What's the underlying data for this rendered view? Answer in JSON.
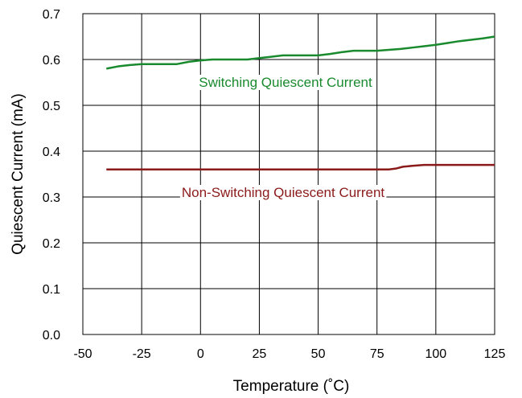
{
  "chart_data": {
    "type": "line",
    "title": "",
    "xlabel": "Temperature (˚C)",
    "ylabel": "Quiescent Current (mA)",
    "xlim": [
      -50,
      125
    ],
    "ylim": [
      0.0,
      0.7
    ],
    "x_ticks": [
      "-50",
      "-25",
      "0",
      "25",
      "50",
      "75",
      "100",
      "125"
    ],
    "y_ticks": [
      "0.0",
      "0.1",
      "0.2",
      "0.3",
      "0.4",
      "0.5",
      "0.6",
      "0.7"
    ],
    "grid": true,
    "legend": "none",
    "series": [
      {
        "name": "Switching Quiescent Current",
        "color": "#1a8a2e",
        "x": [
          -40,
          -35,
          -30,
          -25,
          -20,
          -15,
          -10,
          -5,
          0,
          5,
          10,
          15,
          20,
          25,
          30,
          35,
          40,
          45,
          50,
          55,
          60,
          65,
          70,
          75,
          80,
          85,
          90,
          95,
          100,
          105,
          110,
          115,
          120,
          125
        ],
        "values": [
          0.58,
          0.585,
          0.588,
          0.59,
          0.59,
          0.59,
          0.59,
          0.595,
          0.598,
          0.6,
          0.6,
          0.6,
          0.6,
          0.603,
          0.606,
          0.609,
          0.609,
          0.609,
          0.609,
          0.612,
          0.616,
          0.619,
          0.619,
          0.619,
          0.621,
          0.623,
          0.626,
          0.629,
          0.632,
          0.636,
          0.64,
          0.643,
          0.646,
          0.65
        ]
      },
      {
        "name": "Non-Switching Quiescent Current",
        "color": "#8b1a1a",
        "x": [
          -40,
          -25,
          0,
          25,
          50,
          75,
          80,
          83,
          86,
          90,
          95,
          100,
          110,
          125
        ],
        "values": [
          0.36,
          0.36,
          0.36,
          0.36,
          0.36,
          0.36,
          0.36,
          0.362,
          0.366,
          0.368,
          0.37,
          0.37,
          0.37,
          0.37
        ]
      }
    ]
  }
}
